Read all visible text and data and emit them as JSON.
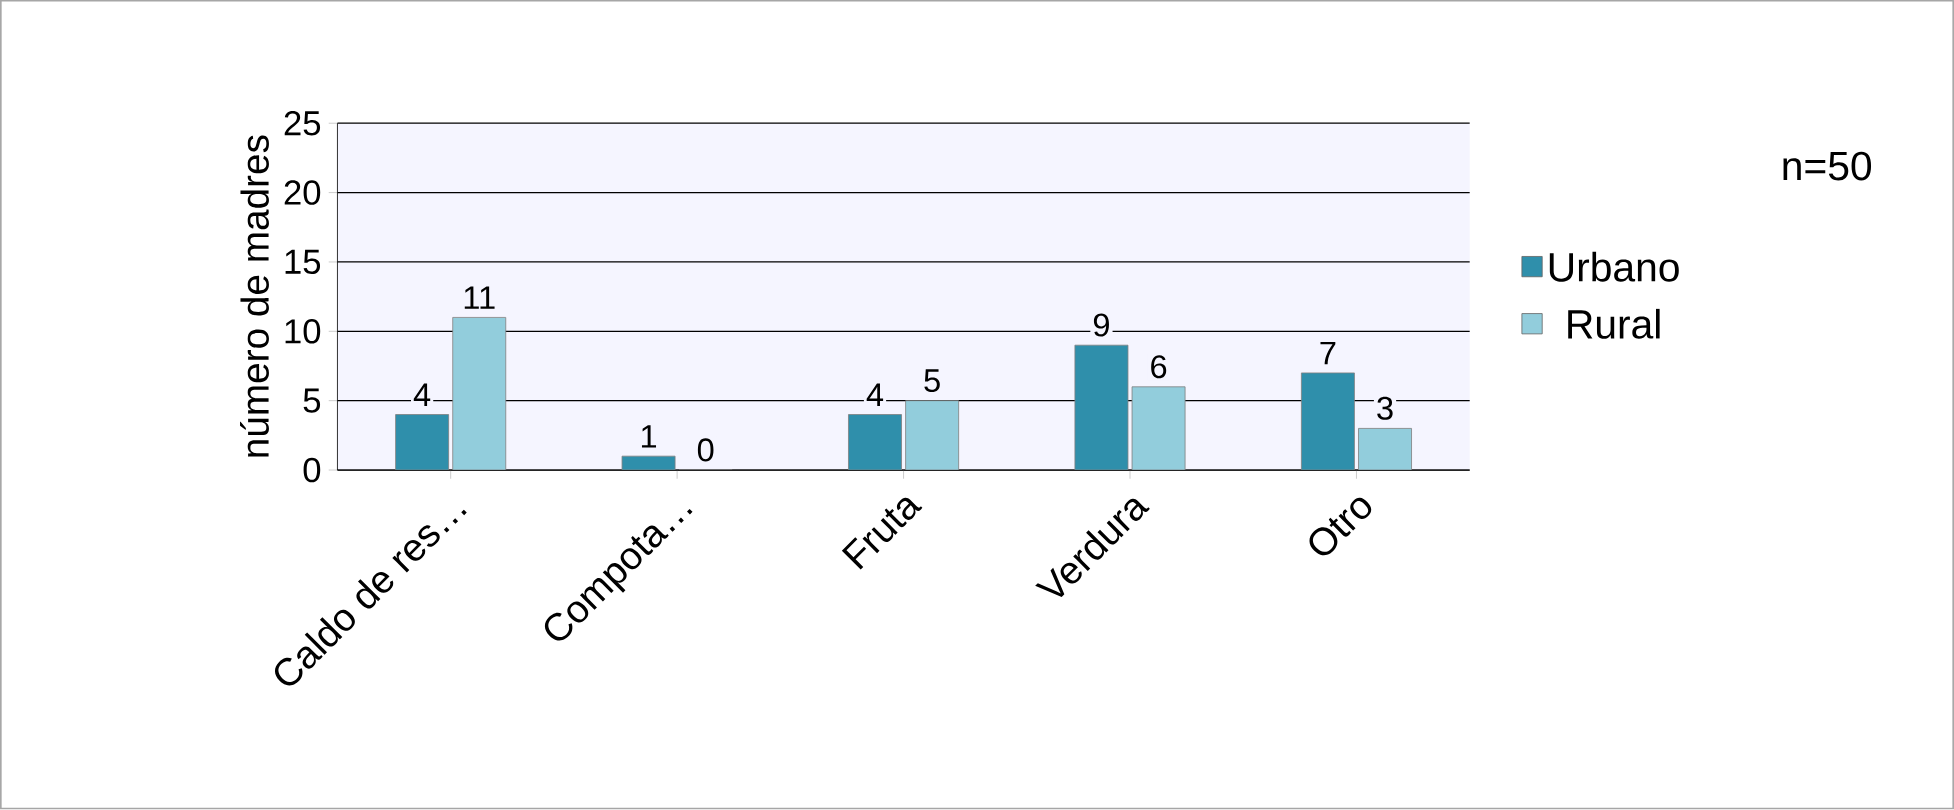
{
  "chart_data": {
    "type": "bar",
    "ylabel": "número de madres",
    "categories": [
      "Caldo de res…",
      "Compota…",
      "Fruta",
      "Verdura",
      "Otro"
    ],
    "series": [
      {
        "name": "Urbano",
        "color": "#2f8fab",
        "values": [
          4,
          1,
          4,
          9,
          7
        ]
      },
      {
        "name": "Rural",
        "color": "#92cddc",
        "values": [
          11,
          0,
          5,
          6,
          3
        ]
      }
    ],
    "ylim": [
      0,
      25
    ],
    "yticks": [
      0,
      5,
      10,
      15,
      20,
      25
    ],
    "grid": "y",
    "legend": "right",
    "data_labels": true,
    "annotations": [
      "n=50"
    ]
  }
}
